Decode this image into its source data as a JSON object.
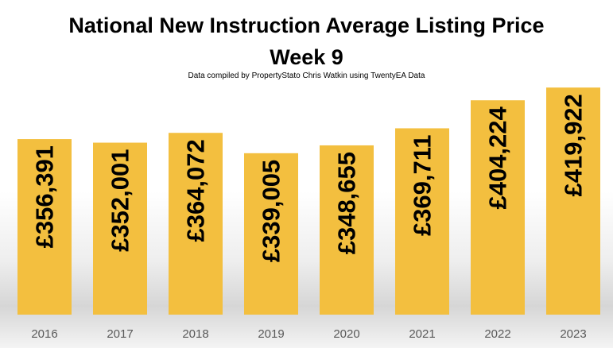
{
  "chart_data": {
    "type": "bar",
    "title": [
      "National New Instruction Average Listing Price",
      "Week 9"
    ],
    "subtitle": "Data compiled by PropertyStato Chris Watkin using TwentyEA Data",
    "categories": [
      "2016",
      "2017",
      "2018",
      "2019",
      "2020",
      "2021",
      "2022",
      "2023"
    ],
    "values": [
      356391,
      352001,
      364072,
      339005,
      348655,
      369711,
      404224,
      419922
    ],
    "data_labels": [
      "£356,391",
      "£352,001",
      "£364,072",
      "£339,005",
      "£348,655",
      "£369,711",
      "£404,224",
      "£419,922"
    ],
    "bar_color": "#F3BF3F",
    "grid": false,
    "legend": "none"
  }
}
